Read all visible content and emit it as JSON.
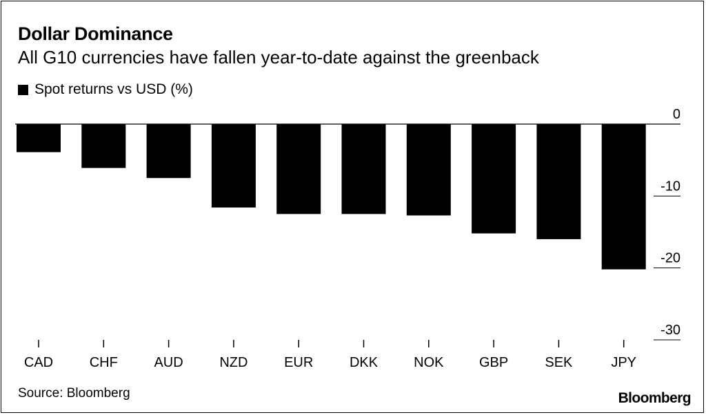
{
  "chart_data": {
    "type": "bar",
    "title": "Dollar Dominance",
    "subtitle": "All G10 currencies have fallen year-to-date against the greenback",
    "categories": [
      "CAD",
      "CHF",
      "AUD",
      "NZD",
      "EUR",
      "DKK",
      "NOK",
      "GBP",
      "SEK",
      "JPY"
    ],
    "series": [
      {
        "name": "Spot returns vs USD (%)",
        "values": [
          -3.9,
          -6.1,
          -7.5,
          -11.6,
          -12.5,
          -12.5,
          -12.7,
          -15.2,
          -16.0,
          -20.2
        ]
      }
    ],
    "ylim": [
      -30,
      0
    ],
    "yticks": [
      0,
      -10,
      -20,
      -30
    ],
    "ytick_labels": [
      "0",
      "-10",
      "-20",
      "-30"
    ],
    "bar_color": "#000000",
    "source": "Source: Bloomberg",
    "brand": "Bloomberg"
  }
}
